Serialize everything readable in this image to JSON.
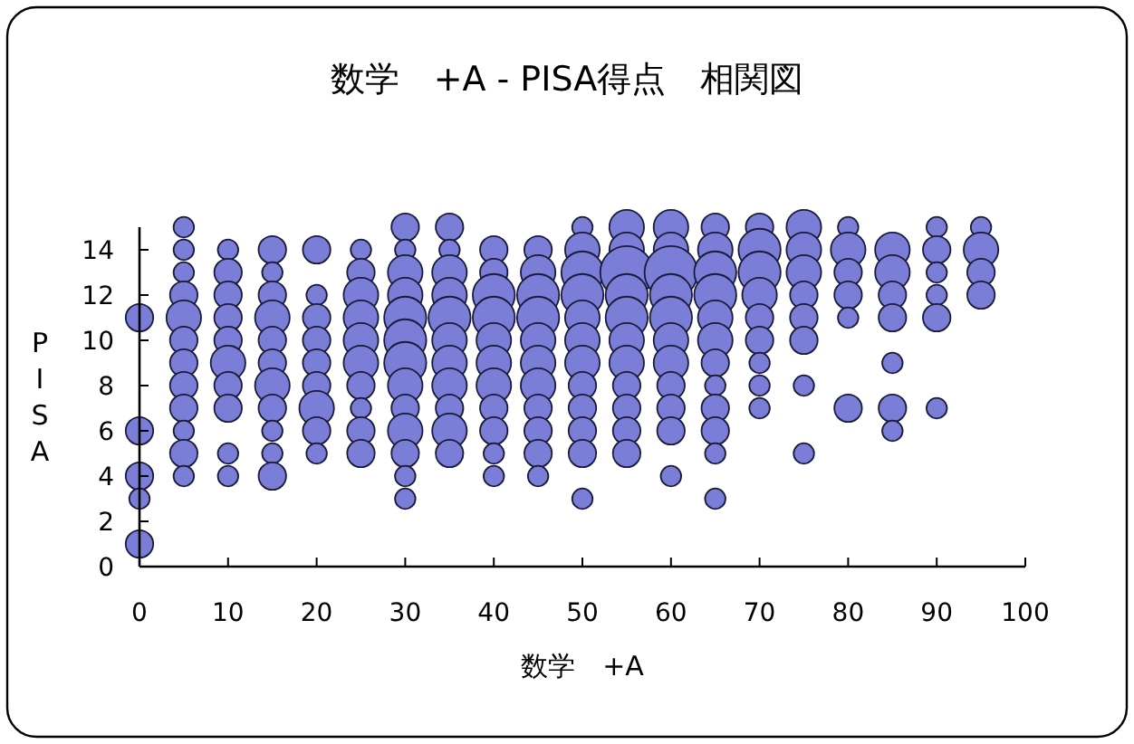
{
  "chart_data": {
    "type": "bubble",
    "title": "数学　+A - PISA得点　相関図",
    "xlabel": "数学　+A",
    "ylabel": "PISA",
    "xlim": [
      0,
      100
    ],
    "xticks": [
      0,
      10,
      20,
      30,
      40,
      50,
      60,
      70,
      80,
      90,
      100
    ],
    "ylim": [
      0,
      15
    ],
    "yticks": [
      0,
      2,
      4,
      6,
      8,
      10,
      12,
      14
    ],
    "grid": false,
    "series": [
      {
        "color": "#7a7ed6",
        "x": [
          0,
          0,
          0,
          0,
          0
        ],
        "values": [
          11,
          6,
          4,
          3,
          1
        ],
        "sizes": [
          0.25,
          0.25,
          0.25,
          0.13,
          0.25
        ]
      },
      {
        "color": "#7a7ed6",
        "x": [
          5,
          5,
          5,
          5,
          5,
          5,
          5,
          5,
          5,
          5,
          5,
          5
        ],
        "values": [
          15,
          14,
          13,
          12,
          11,
          10,
          9,
          8,
          7,
          6,
          5,
          4
        ],
        "sizes": [
          0.13,
          0.13,
          0.13,
          0.25,
          0.41,
          0.25,
          0.25,
          0.25,
          0.25,
          0.13,
          0.25,
          0.13
        ]
      },
      {
        "color": "#7a7ed6",
        "x": [
          10,
          10,
          10,
          10,
          10,
          10,
          10,
          10,
          10,
          10
        ],
        "values": [
          14,
          13,
          12,
          11,
          10,
          9,
          8,
          7,
          5,
          4
        ],
        "sizes": [
          0.13,
          0.25,
          0.25,
          0.25,
          0.25,
          0.41,
          0.25,
          0.25,
          0.13,
          0.13
        ]
      },
      {
        "color": "#7a7ed6",
        "x": [
          15,
          15,
          15,
          15,
          15,
          15,
          15,
          15,
          15,
          15,
          15
        ],
        "values": [
          14,
          13,
          12,
          11,
          10,
          9,
          8,
          7,
          6,
          5,
          4
        ],
        "sizes": [
          0.25,
          0.13,
          0.25,
          0.41,
          0.25,
          0.25,
          0.41,
          0.25,
          0.13,
          0.13,
          0.25
        ]
      },
      {
        "color": "#7a7ed6",
        "x": [
          20,
          20,
          20,
          20,
          20,
          20,
          20,
          20,
          20
        ],
        "values": [
          14,
          12,
          11,
          10,
          9,
          8,
          7,
          6,
          5
        ],
        "sizes": [
          0.25,
          0.13,
          0.25,
          0.25,
          0.25,
          0.25,
          0.41,
          0.25,
          0.13
        ]
      },
      {
        "color": "#7a7ed6",
        "x": [
          25,
          25,
          25,
          25,
          25,
          25,
          25,
          25,
          25,
          25
        ],
        "values": [
          14,
          13,
          12,
          11,
          10,
          9,
          8,
          7,
          6,
          5
        ],
        "sizes": [
          0.13,
          0.25,
          0.41,
          0.41,
          0.41,
          0.41,
          0.25,
          0.13,
          0.25,
          0.25
        ]
      },
      {
        "color": "#7a7ed6",
        "x": [
          30,
          30,
          30,
          30,
          30,
          30,
          30,
          30,
          30,
          30,
          30,
          30,
          30
        ],
        "values": [
          15,
          14,
          13,
          12,
          11,
          10,
          9,
          8,
          7,
          6,
          5,
          4,
          3
        ],
        "sizes": [
          0.25,
          0.13,
          0.41,
          0.41,
          0.62,
          0.62,
          0.62,
          0.41,
          0.25,
          0.41,
          0.25,
          0.13,
          0.13
        ]
      },
      {
        "color": "#7a7ed6",
        "x": [
          35,
          35,
          35,
          35,
          35,
          35,
          35,
          35,
          35,
          35,
          35
        ],
        "values": [
          15,
          14,
          13,
          12,
          11,
          10,
          9,
          8,
          7,
          6,
          5
        ],
        "sizes": [
          0.25,
          0.13,
          0.41,
          0.41,
          0.62,
          0.41,
          0.41,
          0.41,
          0.25,
          0.41,
          0.25
        ]
      },
      {
        "color": "#7a7ed6",
        "x": [
          40,
          40,
          40,
          40,
          40,
          40,
          40,
          40,
          40,
          40,
          40
        ],
        "values": [
          14,
          13,
          12,
          11,
          10,
          9,
          8,
          7,
          6,
          5,
          4
        ],
        "sizes": [
          0.25,
          0.25,
          0.62,
          0.62,
          0.41,
          0.41,
          0.41,
          0.25,
          0.25,
          0.13,
          0.13
        ]
      },
      {
        "color": "#7a7ed6",
        "x": [
          45,
          45,
          45,
          45,
          45,
          45,
          45,
          45,
          45,
          45,
          45
        ],
        "values": [
          14,
          13,
          12,
          11,
          10,
          9,
          8,
          7,
          6,
          5,
          4
        ],
        "sizes": [
          0.25,
          0.41,
          0.62,
          0.62,
          0.41,
          0.41,
          0.41,
          0.25,
          0.25,
          0.25,
          0.13
        ]
      },
      {
        "color": "#7a7ed6",
        "x": [
          50,
          50,
          50,
          50,
          50,
          50,
          50,
          50,
          50,
          50,
          50,
          50
        ],
        "values": [
          15,
          14,
          13,
          12,
          11,
          10,
          9,
          8,
          7,
          6,
          5,
          3
        ],
        "sizes": [
          0.13,
          0.41,
          0.62,
          0.62,
          0.41,
          0.41,
          0.41,
          0.25,
          0.25,
          0.25,
          0.25,
          0.13
        ]
      },
      {
        "color": "#7a7ed6",
        "x": [
          55,
          55,
          55,
          55,
          55,
          55,
          55,
          55,
          55,
          55,
          55
        ],
        "values": [
          15,
          14,
          13,
          12,
          11,
          10,
          9,
          8,
          7,
          6,
          5
        ],
        "sizes": [
          0.41,
          0.41,
          1,
          0.62,
          0.62,
          0.41,
          0.41,
          0.25,
          0.25,
          0.25,
          0.25
        ]
      },
      {
        "color": "#7a7ed6",
        "x": [
          60,
          60,
          60,
          60,
          60,
          60,
          60,
          60,
          60,
          60,
          60
        ],
        "values": [
          15,
          14,
          13,
          12,
          11,
          10,
          9,
          8,
          7,
          6,
          4
        ],
        "sizes": [
          0.41,
          0.41,
          1,
          0.62,
          0.62,
          0.41,
          0.41,
          0.25,
          0.25,
          0.25,
          0.13
        ]
      },
      {
        "color": "#7a7ed6",
        "x": [
          65,
          65,
          65,
          65,
          65,
          65,
          65,
          65,
          65,
          65,
          65,
          65
        ],
        "values": [
          15,
          14,
          13,
          12,
          11,
          10,
          9,
          8,
          7,
          6,
          5,
          3
        ],
        "sizes": [
          0.25,
          0.41,
          0.62,
          0.62,
          0.41,
          0.41,
          0.25,
          0.13,
          0.25,
          0.25,
          0.13,
          0.13
        ]
      },
      {
        "color": "#7a7ed6",
        "x": [
          70,
          70,
          70,
          70,
          70,
          70,
          70,
          70,
          70
        ],
        "values": [
          15,
          14,
          13,
          12,
          11,
          10,
          9,
          8,
          7
        ],
        "sizes": [
          0.25,
          0.62,
          0.62,
          0.41,
          0.25,
          0.25,
          0.13,
          0.13,
          0.13
        ]
      },
      {
        "color": "#7a7ed6",
        "x": [
          75,
          75,
          75,
          75,
          75,
          75,
          75,
          75
        ],
        "values": [
          15,
          14,
          13,
          12,
          11,
          10,
          8,
          5
        ],
        "sizes": [
          0.41,
          0.41,
          0.41,
          0.25,
          0.25,
          0.25,
          0.13,
          0.13
        ]
      },
      {
        "color": "#7a7ed6",
        "x": [
          80,
          80,
          80,
          80,
          80,
          80
        ],
        "values": [
          15,
          14,
          13,
          12,
          11,
          7
        ],
        "sizes": [
          0.13,
          0.41,
          0.25,
          0.25,
          0.13,
          0.25
        ]
      },
      {
        "color": "#7a7ed6",
        "x": [
          85,
          85,
          85,
          85,
          85,
          85,
          85
        ],
        "values": [
          14,
          13,
          12,
          11,
          9,
          7,
          6
        ],
        "sizes": [
          0.41,
          0.41,
          0.25,
          0.25,
          0.13,
          0.25,
          0.13
        ]
      },
      {
        "color": "#7a7ed6",
        "x": [
          90,
          90,
          90,
          90,
          90,
          90
        ],
        "values": [
          15,
          14,
          13,
          12,
          11,
          7
        ],
        "sizes": [
          0.13,
          0.25,
          0.13,
          0.13,
          0.25,
          0.13
        ]
      },
      {
        "color": "#7a7ed6",
        "x": [
          95,
          95,
          95,
          95
        ],
        "values": [
          15,
          14,
          13,
          12
        ],
        "sizes": [
          0.13,
          0.41,
          0.25,
          0.25
        ]
      }
    ]
  }
}
